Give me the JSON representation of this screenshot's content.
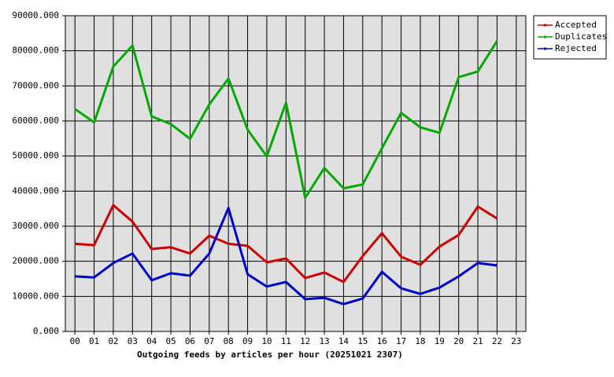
{
  "chart_data": {
    "type": "line",
    "x_label": "Outgoing feeds by articles per hour (20251021 2307)",
    "categories": [
      "00",
      "01",
      "02",
      "03",
      "04",
      "05",
      "06",
      "07",
      "08",
      "09",
      "10",
      "11",
      "12",
      "13",
      "14",
      "15",
      "16",
      "17",
      "18",
      "19",
      "20",
      "21",
      "22",
      "23"
    ],
    "series": [
      {
        "name": "Accepted",
        "color": "#cc0000",
        "values": [
          25000,
          24600,
          36000,
          31300,
          23500,
          24000,
          22200,
          27300,
          25000,
          24400,
          19700,
          20800,
          15200,
          16800,
          14100,
          21500,
          28000,
          21300,
          19000,
          24200,
          27500,
          35600,
          32200,
          null
        ]
      },
      {
        "name": "Duplicates",
        "color": "#00aa00",
        "values": [
          63400,
          59600,
          75500,
          81500,
          61300,
          59100,
          54900,
          64700,
          72100,
          57500,
          49900,
          65200,
          38100,
          46600,
          40800,
          41900,
          52200,
          62300,
          58200,
          56600,
          72500,
          74100,
          82800,
          null
        ]
      },
      {
        "name": "Rejected",
        "color": "#0000cc",
        "values": [
          15700,
          15400,
          19500,
          22200,
          14600,
          16600,
          15900,
          22200,
          35200,
          16300,
          12800,
          14100,
          9200,
          9600,
          7800,
          9400,
          17000,
          12300,
          10700,
          12500,
          15700,
          19500,
          18800,
          null
        ]
      }
    ],
    "ylim": [
      0,
      90000
    ],
    "yticks": [
      {
        "value": 0,
        "label": "0.000"
      },
      {
        "value": 10000,
        "label": "10000.000"
      },
      {
        "value": 20000,
        "label": "20000.000"
      },
      {
        "value": 30000,
        "label": "30000.000"
      },
      {
        "value": 40000,
        "label": "40000.000"
      },
      {
        "value": 50000,
        "label": "50000.000"
      },
      {
        "value": 60000,
        "label": "60000.000"
      },
      {
        "value": 70000,
        "label": "70000.000"
      },
      {
        "value": 80000,
        "label": "80000.000"
      },
      {
        "value": 90000,
        "label": "90000.000"
      }
    ],
    "grid": true,
    "legend": "top-right",
    "plot_background": "#e0e0e0"
  }
}
